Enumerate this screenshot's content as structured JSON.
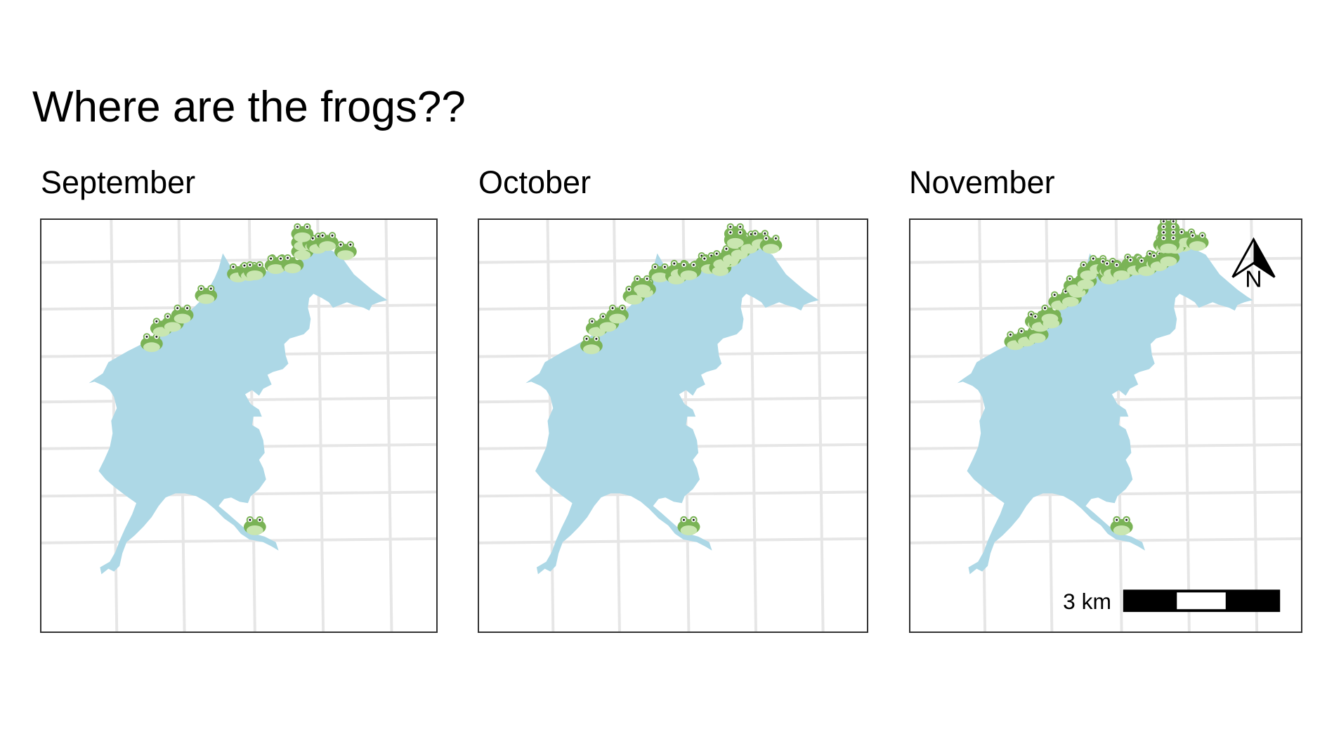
{
  "title": "Where are the frogs??",
  "colors": {
    "water": "#add8e6",
    "grid": "#e6e6e6",
    "frog": "#7ab356",
    "frog_belly": "#c9e6b0"
  },
  "icons": {
    "frog": "frog-icon",
    "north_arrow": "north-arrow-icon"
  },
  "panels": [
    {
      "month": "September",
      "frogs": [
        [
          10,
          3
        ],
        [
          12,
          4
        ],
        [
          13,
          5
        ],
        [
          15,
          6
        ],
        [
          19,
          8
        ],
        [
          34,
          11
        ],
        [
          38,
          12
        ],
        [
          39,
          13
        ],
        [
          41,
          14
        ],
        [
          42,
          15
        ],
        [
          43,
          16
        ],
        [
          44,
          17
        ],
        [
          45,
          18
        ],
        [
          46,
          18.5
        ],
        [
          47,
          19
        ],
        [
          49,
          20
        ],
        [
          50,
          21
        ],
        [
          53,
          6
        ],
        [
          61,
          10
        ]
      ]
    },
    {
      "month": "October",
      "frogs": [
        [
          11,
          3
        ],
        [
          12,
          4
        ],
        [
          13,
          5
        ],
        [
          15,
          6
        ],
        [
          16,
          7
        ],
        [
          20,
          8
        ],
        [
          21,
          8.5
        ],
        [
          34,
          10
        ],
        [
          35,
          11
        ],
        [
          37,
          12
        ],
        [
          38,
          12.5
        ],
        [
          39,
          13
        ],
        [
          40,
          14
        ],
        [
          41,
          14.5
        ],
        [
          42,
          15
        ],
        [
          43,
          15.5
        ],
        [
          44,
          16
        ],
        [
          45,
          16.5
        ],
        [
          46,
          17
        ],
        [
          47,
          17.5
        ],
        [
          48,
          18
        ],
        [
          49,
          18.5
        ],
        [
          50,
          19
        ],
        [
          51,
          19.5
        ],
        [
          52,
          20
        ],
        [
          53,
          20.5
        ],
        [
          54,
          6
        ],
        [
          55,
          7
        ],
        [
          60,
          10
        ],
        [
          62,
          11
        ],
        [
          64,
          12
        ]
      ]
    },
    {
      "month": "November",
      "frogs": [
        [
          9,
          3
        ],
        [
          10,
          3.5
        ],
        [
          11,
          4
        ],
        [
          12,
          4.5
        ],
        [
          13,
          5
        ],
        [
          14,
          5.5
        ],
        [
          15,
          6
        ],
        [
          16,
          6.5
        ],
        [
          17,
          7
        ],
        [
          20,
          8
        ],
        [
          21,
          8.5
        ],
        [
          22,
          9
        ],
        [
          33,
          10
        ],
        [
          34,
          10.5
        ],
        [
          35,
          11
        ],
        [
          36,
          11.5
        ],
        [
          37,
          12
        ],
        [
          38,
          12.5
        ],
        [
          39,
          13
        ],
        [
          40,
          13.5
        ],
        [
          41,
          14
        ],
        [
          42,
          14.5
        ],
        [
          43,
          15
        ],
        [
          44,
          15.5
        ],
        [
          45,
          16
        ],
        [
          46,
          16.5
        ],
        [
          47,
          17
        ],
        [
          48,
          17.5
        ],
        [
          49,
          18
        ],
        [
          50,
          18.5
        ],
        [
          51,
          19
        ],
        [
          52,
          19.5
        ],
        [
          53,
          20
        ],
        [
          54,
          5
        ],
        [
          55,
          6
        ],
        [
          56,
          7
        ],
        [
          57,
          8
        ],
        [
          61,
          10
        ],
        [
          62,
          10.5
        ],
        [
          63,
          11
        ],
        [
          64,
          11.5
        ],
        [
          65,
          12
        ]
      ]
    }
  ],
  "scalebar": {
    "label": "3 km",
    "segments": 3
  },
  "north_arrow": {
    "label": "N"
  }
}
